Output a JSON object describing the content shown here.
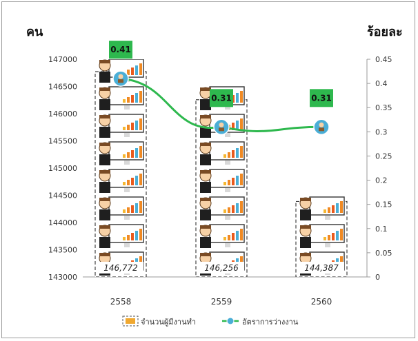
{
  "chart_data": {
    "type": "bar",
    "categories": [
      "2558",
      "2559",
      "2560"
    ],
    "left_unit": "คน",
    "right_unit": "ร้อยละ",
    "left_axis": {
      "min": 143000,
      "max": 147000,
      "step": 500
    },
    "right_axis": {
      "min": 0,
      "max": 0.45,
      "step": 0.05
    },
    "left_tick_labels": [
      "143000",
      "143500",
      "144000",
      "144500",
      "145000",
      "145500",
      "146000",
      "146500",
      "147000"
    ],
    "right_tick_labels": [
      "0",
      "0.05",
      "0.1",
      "0.15",
      "0.2",
      "0.25",
      "0.3",
      "0.35",
      "0.4",
      "0.45"
    ],
    "series": [
      {
        "name": "จำนวนผู้มีงานทำ",
        "type": "bar",
        "axis": "left",
        "values": [
          146772,
          146256,
          144387
        ],
        "data_labels": [
          "146,772",
          "146,256",
          "144,387"
        ]
      },
      {
        "name": "อัตราการว่างงาน",
        "type": "line",
        "axis": "right",
        "values": [
          0.41,
          0.31,
          0.31
        ],
        "data_labels": [
          "0.41",
          "0.31",
          "0.31"
        ]
      }
    ],
    "legend_position": "bottom",
    "grid": false
  },
  "colors": {
    "line": "#2eb84e",
    "label_box": "#2eb84e",
    "marker": "#4aaed6",
    "axis": "#9a9a9a",
    "text": "#333333"
  }
}
